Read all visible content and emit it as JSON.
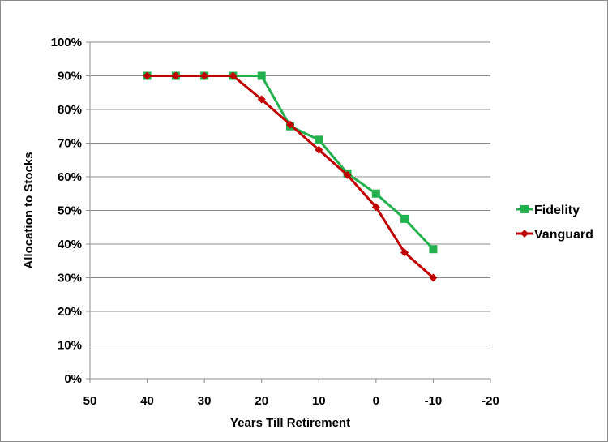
{
  "chart_data": {
    "type": "line",
    "xlabel": "Years Till Retirement",
    "ylabel": "Allocation to Stocks",
    "xlim": [
      50,
      -20
    ],
    "ylim": [
      0,
      1
    ],
    "x_ticks": [
      50,
      40,
      30,
      20,
      10,
      0,
      -10,
      -20
    ],
    "x_tick_labels": [
      "50",
      "40",
      "30",
      "20",
      "10",
      "0",
      "-10",
      "-20"
    ],
    "y_ticks": [
      0,
      0.1,
      0.2,
      0.3,
      0.4,
      0.5,
      0.6,
      0.7,
      0.8,
      0.9,
      1.0
    ],
    "y_tick_labels": [
      "0%",
      "10%",
      "20%",
      "30%",
      "40%",
      "50%",
      "60%",
      "70%",
      "80%",
      "90%",
      "100%"
    ],
    "grid": "horizontal",
    "legend_position": "right",
    "series": [
      {
        "name": "Fidelity",
        "color": "#22b14c",
        "marker": "square",
        "x": [
          40,
          35,
          30,
          25,
          20,
          15,
          10,
          5,
          0,
          -5,
          -10
        ],
        "y": [
          0.9,
          0.9,
          0.9,
          0.9,
          0.9,
          0.75,
          0.71,
          0.61,
          0.55,
          0.475,
          0.385
        ]
      },
      {
        "name": "Vanguard",
        "color": "#c00000",
        "marker": "diamond",
        "x": [
          40,
          35,
          30,
          25,
          20,
          15,
          10,
          5,
          0,
          -5,
          -10
        ],
        "y": [
          0.9,
          0.9,
          0.9,
          0.9,
          0.83,
          0.755,
          0.68,
          0.605,
          0.51,
          0.375,
          0.3
        ]
      }
    ]
  }
}
